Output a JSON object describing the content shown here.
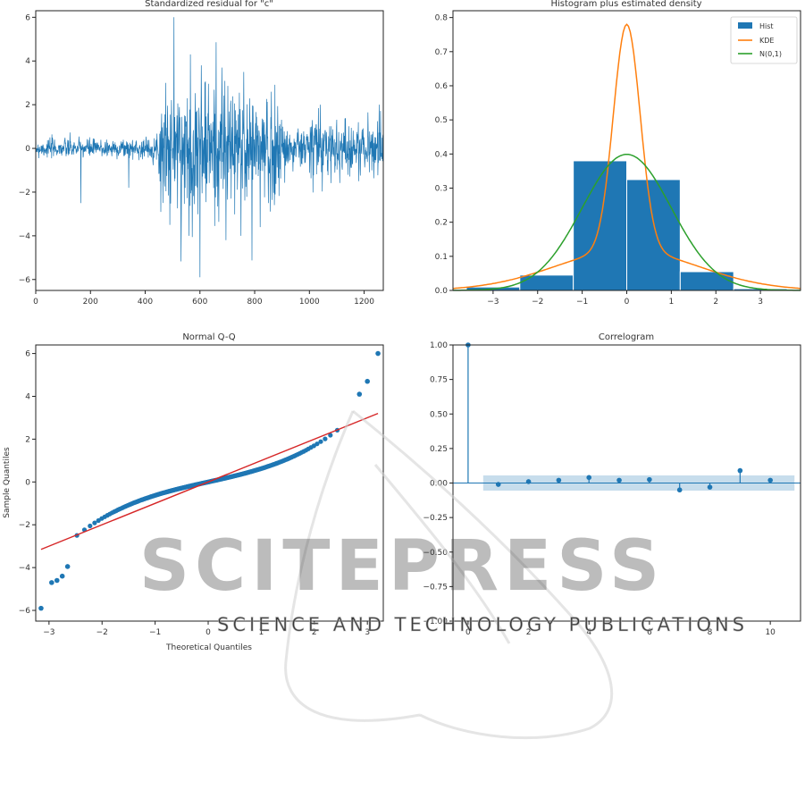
{
  "watermark": {
    "main": "SCITEPRESS",
    "sub": "SCIENCE AND TECHNOLOGY PUBLICATIONS"
  },
  "colors": {
    "series": "#1f77b4",
    "kde": "#ff7f0e",
    "normal": "#2ca02c",
    "qq_line": "#d62728"
  },
  "chart_data": [
    {
      "id": "residual",
      "type": "line",
      "title": "Standardized residual for \"c\"",
      "xlabel": "",
      "ylabel": "",
      "xlim": [
        0,
        1270
      ],
      "ylim": [
        -6.5,
        6.3
      ],
      "xticks": [
        0,
        200,
        400,
        600,
        800,
        1000,
        1200
      ],
      "yticks": [
        -6,
        -4,
        -2,
        0,
        2,
        4,
        6
      ],
      "envelope": [
        {
          "x": [
            0,
            450
          ],
          "amp": 0.4
        },
        {
          "x": [
            450,
            560
          ],
          "amp": 2.2
        },
        {
          "x": [
            560,
            700
          ],
          "amp": 2.8
        },
        {
          "x": [
            700,
            900
          ],
          "amp": 2.3
        },
        {
          "x": [
            900,
            1000
          ],
          "amp": 0.9
        },
        {
          "x": [
            1000,
            1100
          ],
          "amp": 1.5
        },
        {
          "x": [
            1100,
            1270
          ],
          "amp": 1.1
        }
      ],
      "spikes": [
        {
          "x": 165,
          "y": -2.5
        },
        {
          "x": 340,
          "y": -1.8
        },
        {
          "x": 475,
          "y": 3.0
        },
        {
          "x": 490,
          "y": -3.5
        },
        {
          "x": 505,
          "y": 6.0
        },
        {
          "x": 560,
          "y": -4.0
        },
        {
          "x": 565,
          "y": 4.3
        },
        {
          "x": 600,
          "y": -5.9
        },
        {
          "x": 605,
          "y": 3.8
        },
        {
          "x": 680,
          "y": 3.7
        },
        {
          "x": 695,
          "y": -4.2
        },
        {
          "x": 750,
          "y": -4.0
        },
        {
          "x": 760,
          "y": 3.5
        },
        {
          "x": 820,
          "y": -3.6
        },
        {
          "x": 850,
          "y": -2.5
        },
        {
          "x": 1040,
          "y": 2.0
        },
        {
          "x": 1255,
          "y": 2.0
        }
      ]
    },
    {
      "id": "histogram",
      "type": "bar",
      "title": "Histogram plus estimated density",
      "xlabel": "",
      "ylabel": "",
      "xlim": [
        -3.9,
        3.9
      ],
      "ylim": [
        0,
        0.82
      ],
      "xticks": [
        -3,
        -2,
        -1,
        0,
        1,
        2,
        3
      ],
      "yticks": [
        0.0,
        0.1,
        0.2,
        0.3,
        0.4,
        0.5,
        0.6,
        0.7,
        0.8
      ],
      "bins": [
        {
          "x0": -3.6,
          "x1": -2.4,
          "value": 0.01
        },
        {
          "x0": -2.4,
          "x1": -1.2,
          "value": 0.045
        },
        {
          "x0": -1.2,
          "x1": 0.0,
          "value": 0.38
        },
        {
          "x0": 0.0,
          "x1": 1.2,
          "value": 0.325
        },
        {
          "x0": 1.2,
          "x1": 2.4,
          "value": 0.055
        },
        {
          "x0": 2.4,
          "x1": 3.6,
          "value": 0.005
        }
      ],
      "kde": {
        "peak": 0.78,
        "center": 0.0,
        "core_sd": 0.3,
        "tail_weight": 0.15,
        "tail_sd": 1.6
      },
      "normal": {
        "mean": 0,
        "sd": 1
      },
      "legend": {
        "position": "top-right",
        "entries": [
          {
            "label": "Hist",
            "kind": "patch"
          },
          {
            "label": "KDE",
            "kind": "line"
          },
          {
            "label": "N(0,1)",
            "kind": "line"
          }
        ]
      }
    },
    {
      "id": "qq",
      "type": "scatter",
      "title": "Normal Q-Q",
      "xlabel": "Theoretical Quantiles",
      "ylabel": "Sample Quantiles",
      "xlim": [
        -3.25,
        3.3
      ],
      "ylim": [
        -6.5,
        6.4
      ],
      "xticks": [
        -3,
        -2,
        -1,
        0,
        1,
        2,
        3
      ],
      "yticks": [
        -6,
        -4,
        -2,
        0,
        2,
        4,
        6
      ],
      "n_points": 1270,
      "reference_line": {
        "slope": 1.0,
        "intercept": 0.0
      },
      "outliers": [
        {
          "x": -3.15,
          "y": -5.9
        },
        {
          "x": -2.95,
          "y": -4.7
        },
        {
          "x": -2.85,
          "y": -4.6
        },
        {
          "x": -2.75,
          "y": -4.4
        },
        {
          "x": -2.65,
          "y": -3.95
        },
        {
          "x": 2.85,
          "y": 4.1
        },
        {
          "x": 3.0,
          "y": 4.7
        },
        {
          "x": 3.2,
          "y": 6.0
        }
      ]
    },
    {
      "id": "correlogram",
      "type": "bar",
      "title": "Correlogram",
      "xlabel": "",
      "ylabel": "",
      "xlim": [
        -0.5,
        11.0
      ],
      "ylim": [
        -1.0,
        1.0
      ],
      "xticks": [
        0,
        2,
        4,
        6,
        8,
        10
      ],
      "yticks": [
        -1.0,
        -0.75,
        -0.5,
        -0.25,
        0.0,
        0.25,
        0.5,
        0.75,
        1.0
      ],
      "lags": [
        0,
        1,
        2,
        3,
        4,
        5,
        6,
        7,
        8,
        9,
        10
      ],
      "values": [
        1.0,
        -0.01,
        0.01,
        0.02,
        0.04,
        0.02,
        0.025,
        -0.05,
        -0.03,
        0.09,
        0.02
      ],
      "confidence_band": 0.055
    }
  ]
}
